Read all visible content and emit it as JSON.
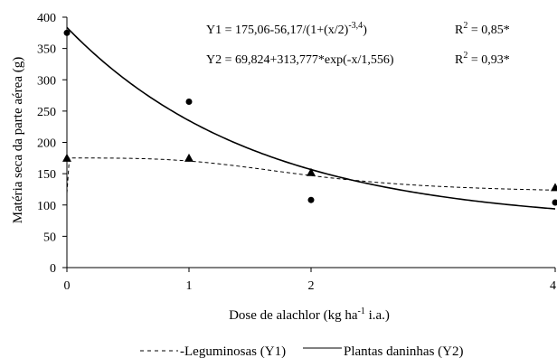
{
  "chart_data": {
    "type": "scatter",
    "title": "",
    "xlabel": "Dose de alachlor (kg ha",
    "xlabel_sup": "-1",
    "xlabel_suffix": " i.a.)",
    "ylabel": "Matéria seca  da parte aérea (g)",
    "xlim": [
      0,
      4
    ],
    "ylim": [
      0,
      400
    ],
    "x_ticks": [
      0,
      1,
      2,
      4
    ],
    "x_tick_labels": [
      "0",
      "1",
      "2",
      "4"
    ],
    "y_ticks": [
      0,
      50,
      100,
      150,
      200,
      250,
      300,
      350,
      400
    ],
    "y_tick_labels": [
      "0",
      "50",
      "100",
      "150",
      "200",
      "250",
      "300",
      "350",
      "400"
    ],
    "grid": false,
    "legend_position": "bottom",
    "series": [
      {
        "name": "Leguminosas (Y1)",
        "marker": "triangle",
        "line_style": "dashed",
        "x": [
          0,
          1,
          2,
          4
        ],
        "y": [
          175,
          175,
          152,
          128
        ]
      },
      {
        "name": "Plantas daninhas (Y2)",
        "marker": "circle",
        "line_style": "solid",
        "x": [
          0,
          1,
          2,
          4
        ],
        "y": [
          375,
          265,
          108,
          104
        ]
      }
    ],
    "annotations": {
      "eq1_main": "Y1 = 175,06-56,17/(1+(x/2)",
      "eq1_sup": "-3,4",
      "eq1_end": ")",
      "eq2": "Y2 = 69,824+313,777*exp(-x/1,556)",
      "r2_1_pre": "R",
      "r2_1_sup": "2",
      "r2_1_val": " = 0,85*",
      "r2_2_pre": "R",
      "r2_2_sup": "2",
      "r2_2_val": " = 0,93*"
    },
    "legend_labels": {
      "y1": "Leguminosas (Y1)",
      "y2": "Plantas daninhas (Y2)"
    },
    "colors": {
      "axis": "#000000",
      "marks": "#000000"
    }
  }
}
